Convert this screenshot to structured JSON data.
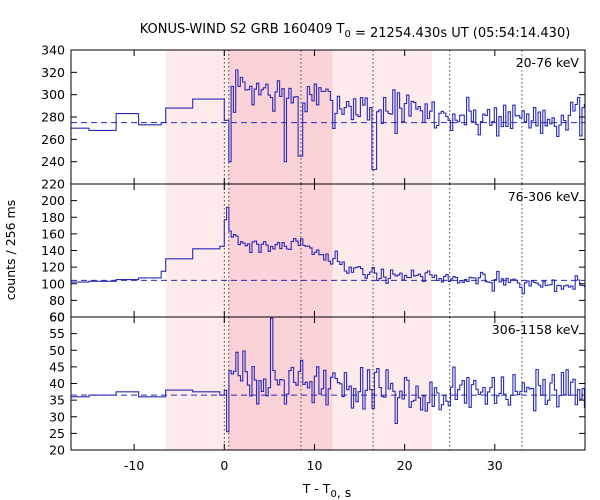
{
  "chart_data": {
    "type": "line",
    "title": "KONUS-WIND S2 GRB 160409 T0 = 21254.430s UT (05:54:14.430)",
    "xlabel": "T - T0, s",
    "ylabel": "counts / 256 ms",
    "xlim": [
      -17,
      40
    ],
    "xticks": [
      "-10",
      "0",
      "10",
      "20",
      "30"
    ],
    "xtick_values": [
      -10,
      0,
      10,
      20,
      30
    ],
    "shaded_intervals": {
      "light": [
        -6.5,
        23.0
      ],
      "dark": [
        0.5,
        12.0
      ]
    },
    "vertical_dotted_lines": [
      0.0,
      0.5,
      8.5,
      16.5,
      25.0,
      33.0
    ],
    "colors": {
      "series": "#2a2ab8",
      "background_line": "#2a2ab8",
      "shade_light": "#fdeaea",
      "shade_dark": "#fad2d8",
      "axis": "#000000"
    },
    "panels": [
      {
        "label": "20-76 keV",
        "ylim": [
          220,
          340
        ],
        "yticks": [
          "220",
          "240",
          "260",
          "280",
          "300",
          "320",
          "340"
        ],
        "ytick_values": [
          220,
          240,
          260,
          280,
          300,
          320,
          340
        ],
        "background": 275,
        "pre_steps": [
          [
            -17,
            270
          ],
          [
            -15,
            268
          ],
          [
            -12,
            283
          ],
          [
            -9.5,
            273
          ],
          [
            -7,
            275
          ],
          [
            -6.5,
            288
          ],
          [
            -3.5,
            296
          ],
          [
            0,
            277
          ]
        ],
        "burst_x_start": 0.5,
        "burst_x_end": 40,
        "burst_binwidth": 0.256,
        "burst_mean": [
          [
            0.5,
            300
          ],
          [
            2.0,
            308
          ],
          [
            6.0,
            300
          ],
          [
            10.0,
            296
          ],
          [
            14.0,
            290
          ],
          [
            20.0,
            286
          ],
          [
            25.0,
            280
          ],
          [
            40.0,
            280
          ]
        ],
        "burst_noise": 14,
        "spikes": [
          [
            0.6,
            240
          ],
          [
            6.6,
            240
          ],
          [
            8.3,
            245
          ],
          [
            16.5,
            233
          ]
        ],
        "seed": 7
      },
      {
        "label": "76-306 keV",
        "ylim": [
          60,
          220
        ],
        "yticks": [
          "60",
          "80",
          "100",
          "120",
          "140",
          "160",
          "180",
          "200"
        ],
        "ytick_values": [
          60,
          80,
          100,
          120,
          140,
          160,
          180,
          200
        ],
        "background": 104,
        "pre_steps": [
          [
            -17,
            102
          ],
          [
            -15,
            103
          ],
          [
            -12,
            105
          ],
          [
            -9.5,
            107
          ],
          [
            -7,
            115
          ],
          [
            -6.5,
            130
          ],
          [
            -3.5,
            142
          ],
          [
            -0.5,
            145
          ]
        ],
        "burst_x_start": 0,
        "burst_x_end": 40,
        "burst_binwidth": 0.256,
        "burst_mean": [
          [
            0.0,
            185
          ],
          [
            0.6,
            160
          ],
          [
            2.0,
            148
          ],
          [
            5.0,
            145
          ],
          [
            8.5,
            150
          ],
          [
            11.0,
            135
          ],
          [
            14.0,
            118
          ],
          [
            18.0,
            110
          ],
          [
            23.0,
            108
          ],
          [
            30.0,
            102
          ],
          [
            40.0,
            98
          ]
        ],
        "burst_noise": 7,
        "spikes": [
          [
            0.2,
            192
          ],
          [
            33.0,
            88
          ]
        ],
        "seed": 21
      },
      {
        "label": "306-1158 keV",
        "ylim": [
          20,
          60
        ],
        "yticks": [
          "20",
          "25",
          "30",
          "35",
          "40",
          "45",
          "50",
          "55",
          "60"
        ],
        "ytick_values": [
          20,
          25,
          30,
          35,
          40,
          45,
          50,
          55,
          60
        ],
        "background": 36.5,
        "pre_steps": [
          [
            -17,
            36
          ],
          [
            -15,
            36.5
          ],
          [
            -12,
            37.5
          ],
          [
            -9.5,
            36
          ],
          [
            -7,
            36
          ],
          [
            -6.5,
            38
          ],
          [
            -3.5,
            37.5
          ],
          [
            -0.5,
            36.5
          ]
        ],
        "burst_x_start": 0,
        "burst_x_end": 40,
        "burst_binwidth": 0.256,
        "burst_mean": [
          [
            0.0,
            42
          ],
          [
            3.0,
            43
          ],
          [
            8.0,
            41
          ],
          [
            14.0,
            39
          ],
          [
            20.0,
            38
          ],
          [
            30.0,
            37
          ],
          [
            40.0,
            36
          ]
        ],
        "burst_noise": 5.5,
        "spikes": [
          [
            0.2,
            27
          ],
          [
            0.35,
            25.5
          ],
          [
            5.2,
            60
          ],
          [
            19.0,
            28
          ]
        ],
        "seed": 33
      }
    ]
  }
}
